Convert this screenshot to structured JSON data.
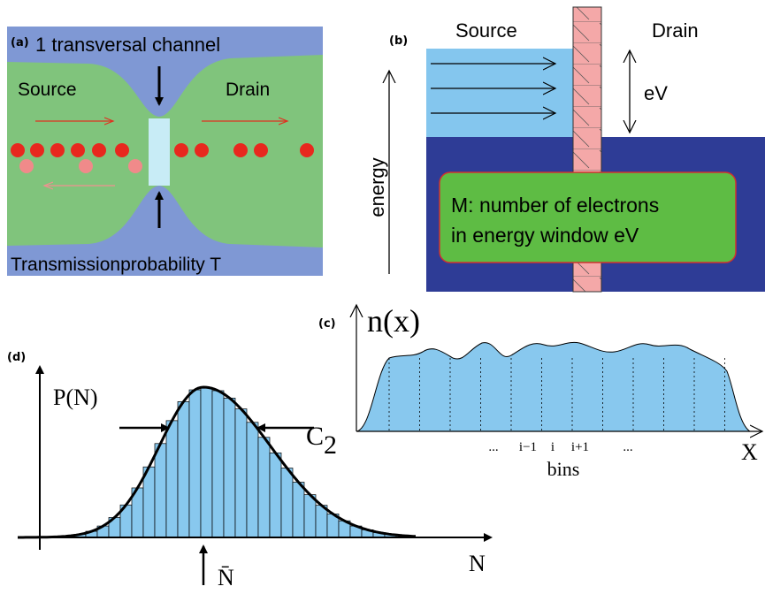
{
  "panels": [
    {
      "label": "(a)",
      "title": "1 transversal channel",
      "source": "Source",
      "drain": "Drain",
      "caption": "Transmissionprobability T"
    },
    {
      "label": "(b)",
      "source": "Source",
      "drain": "Drain",
      "energy_gap": "eV",
      "axis": "energy",
      "box_lines": [
        "M: number of electrons",
        "in energy window eV"
      ]
    },
    {
      "label": "(c)",
      "y_label": "n(x)",
      "bin_labels": [
        "...",
        "i−1",
        "i",
        "i+1",
        "..."
      ],
      "x_caption": "bins",
      "x_label": "X"
    },
    {
      "label": "(d)",
      "y_label": "P(N)",
      "width_label": "C",
      "width_subscript": "2",
      "x_label": "N",
      "mean_label": "N̄"
    }
  ]
}
